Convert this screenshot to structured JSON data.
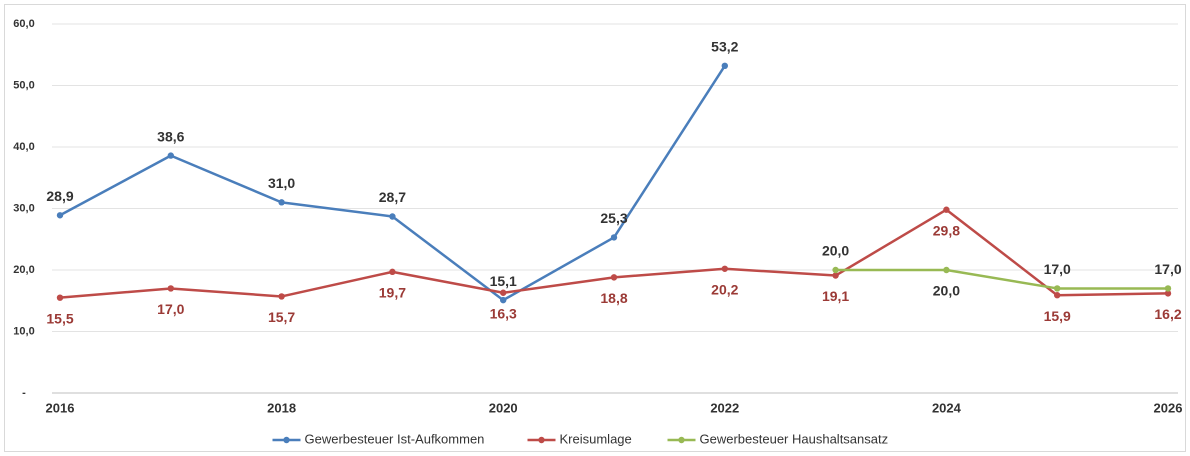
{
  "chart_data": {
    "type": "line",
    "x": [
      2016,
      2017,
      2018,
      2019,
      2020,
      2021,
      2022,
      2023,
      2024,
      2025,
      2026
    ],
    "xlim": [
      2016,
      2026
    ],
    "xticks": [
      2016,
      2018,
      2020,
      2022,
      2024,
      2026
    ],
    "ylim": [
      0,
      60
    ],
    "yticks": [
      {
        "value": 0,
        "label": "-"
      },
      {
        "value": 10,
        "label": "10,0"
      },
      {
        "value": 20,
        "label": "20,0"
      },
      {
        "value": 30,
        "label": "30,0"
      },
      {
        "value": 40,
        "label": "40,0"
      },
      {
        "value": 50,
        "label": "50,0"
      },
      {
        "value": 60,
        "label": "60,0"
      }
    ],
    "grid": true,
    "legend": "bottom",
    "series": [
      {
        "name": "Gewerbesteuer Ist-Aufkommen",
        "color": "#4a7ebb",
        "values": [
          28.9,
          38.6,
          31.0,
          28.7,
          15.1,
          25.3,
          53.2,
          null,
          null,
          null,
          null
        ],
        "value_labels": [
          "28,9",
          "38,6",
          "31,0",
          "28,7",
          "15,1",
          "25,3",
          "53,2",
          null,
          null,
          null,
          null
        ]
      },
      {
        "name": "Kreisumlage",
        "color": "#be4b48",
        "values": [
          15.5,
          17.0,
          15.7,
          19.7,
          16.3,
          18.8,
          20.2,
          19.1,
          29.8,
          15.9,
          16.2
        ],
        "value_labels": [
          "15,5",
          "17,0",
          "15,7",
          "19,7",
          "16,3",
          "18,8",
          "20,2",
          "19,1",
          "29,8",
          "15,9",
          "16,2"
        ]
      },
      {
        "name": "Gewerbesteuer Haushaltsansatz",
        "color": "#98b954",
        "values": [
          null,
          null,
          null,
          null,
          null,
          null,
          null,
          20.0,
          20.0,
          17.0,
          17.0
        ],
        "value_labels": [
          null,
          null,
          null,
          null,
          null,
          null,
          null,
          "20,0",
          "20,0",
          "17,0",
          "17,0"
        ]
      }
    ]
  }
}
